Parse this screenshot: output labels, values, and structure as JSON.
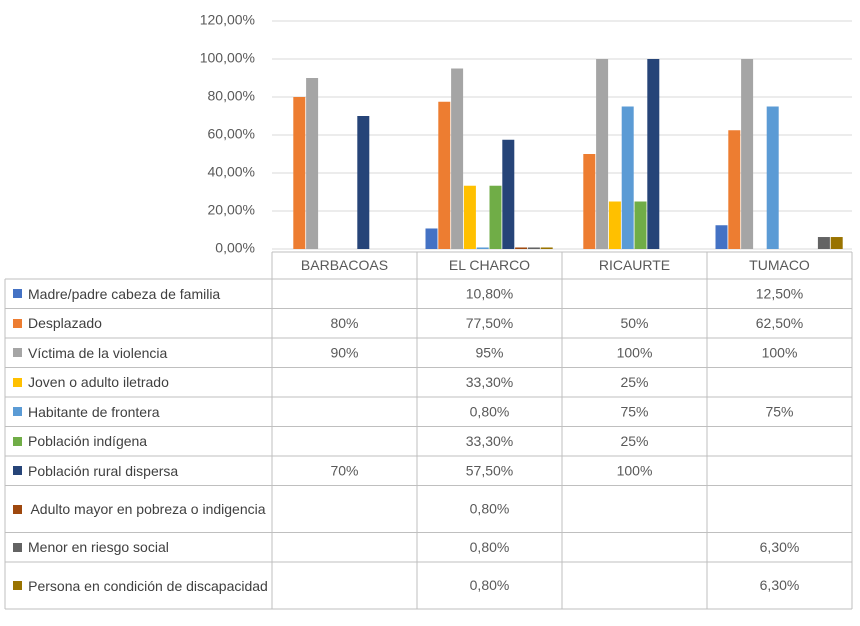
{
  "chart_data": {
    "type": "bar",
    "categories": [
      "BARBACOAS",
      "EL CHARCO",
      "RICAURTE",
      "TUMACO"
    ],
    "ylim": [
      0,
      120
    ],
    "yticks": [
      {
        "value": 0,
        "label": "0,00%"
      },
      {
        "value": 20,
        "label": "20,00%"
      },
      {
        "value": 40,
        "label": "40,00%"
      },
      {
        "value": 60,
        "label": "60,00%"
      },
      {
        "value": 80,
        "label": "80,00%"
      },
      {
        "value": 100,
        "label": "100,00%"
      },
      {
        "value": 120,
        "label": "120,00%"
      }
    ],
    "grid": true,
    "series": [
      {
        "name": "Madre/padre cabeza de familia",
        "color": "#4472c4",
        "values": [
          null,
          10.8,
          null,
          12.5
        ],
        "value_labels": [
          null,
          "10,80%",
          null,
          "12,50%"
        ]
      },
      {
        "name": "Desplazado",
        "color": "#ed7d31",
        "values": [
          80,
          77.5,
          50,
          62.5
        ],
        "value_labels": [
          "80%",
          "77,50%",
          "50%",
          "62,50%"
        ]
      },
      {
        "name": "Víctima de la violencia",
        "color": "#a5a5a5",
        "values": [
          90,
          95,
          100,
          100
        ],
        "value_labels": [
          "90%",
          "95%",
          "100%",
          "100%"
        ]
      },
      {
        "name": "Joven o adulto iletrado",
        "color": "#ffc000",
        "values": [
          null,
          33.3,
          25,
          null
        ],
        "value_labels": [
          null,
          "33,30%",
          "25%",
          null
        ]
      },
      {
        "name": "Habitante de frontera",
        "color": "#5b9bd5",
        "values": [
          null,
          0.8,
          75,
          75
        ],
        "value_labels": [
          null,
          "0,80%",
          "75%",
          "75%"
        ]
      },
      {
        "name": "Población indígena",
        "color": "#70ad47",
        "values": [
          null,
          33.3,
          25,
          null
        ],
        "value_labels": [
          null,
          "33,30%",
          "25%",
          null
        ]
      },
      {
        "name": "Población rural dispersa",
        "color": "#264478",
        "values": [
          70,
          57.5,
          100,
          null
        ],
        "value_labels": [
          "70%",
          "57,50%",
          "100%",
          null
        ]
      },
      {
        "name": "Adulto mayor en pobreza o indigencia",
        "color": "#9e480e",
        "values": [
          null,
          0.8,
          null,
          null
        ],
        "value_labels": [
          null,
          "0,80%",
          null,
          null
        ]
      },
      {
        "name": "Menor en riesgo social",
        "color": "#636363",
        "values": [
          null,
          0.8,
          null,
          6.3
        ],
        "value_labels": [
          null,
          "0,80%",
          null,
          "6,30%"
        ]
      },
      {
        "name": "Persona en condición de discapacidad",
        "color": "#997300",
        "values": [
          null,
          0.8,
          null,
          6.3
        ],
        "value_labels": [
          null,
          "0,80%",
          null,
          "6,30%"
        ]
      }
    ]
  }
}
